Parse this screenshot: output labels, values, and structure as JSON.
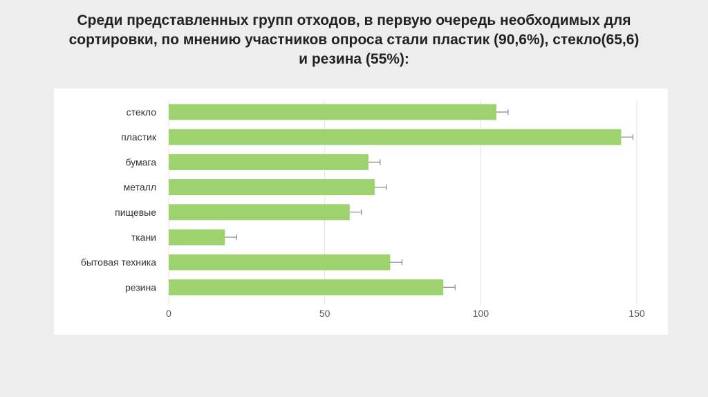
{
  "slide": {
    "title_lines": [
      "Среди представленных групп отходов, в первую очередь необходимых для",
      "сортировки, по мнению участников опроса стали пластик (90,6%), стекло(65,6)",
      "и резина (55%):"
    ]
  },
  "chart_data": {
    "type": "bar",
    "orientation": "horizontal",
    "categories": [
      "стекло",
      "пластик",
      "бумага",
      "металл",
      "пищевые",
      "ткани",
      "бытовая техника",
      "резина"
    ],
    "values": [
      105,
      145,
      64,
      66,
      58,
      18,
      71,
      88
    ],
    "error_bars": true,
    "xlim": [
      0,
      150
    ],
    "xticks": [
      "0",
      "50",
      "100",
      "150"
    ],
    "grid": true,
    "legend": "none",
    "colors": {
      "bar": "#9dd26e",
      "error": "#888888",
      "grid": "#e4e4e4"
    }
  }
}
